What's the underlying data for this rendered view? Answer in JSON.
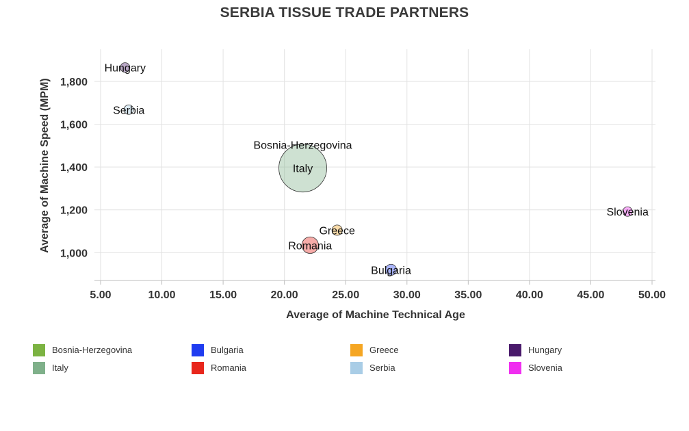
{
  "chart_data": {
    "type": "scatter",
    "title": "SERBIA TISSUE TRADE PARTNERS",
    "xlabel": "Average of Machine Technical Age",
    "ylabel": "Average of Machine Speed (MPM)",
    "xlim": [
      5,
      50
    ],
    "ylim": [
      870,
      1950
    ],
    "xticks": [
      "5.00",
      "10.00",
      "15.00",
      "20.00",
      "25.00",
      "30.00",
      "35.00",
      "40.00",
      "45.00",
      "50.00"
    ],
    "yticks": [
      "1,000",
      "1,200",
      "1,400",
      "1,600",
      "1,800"
    ],
    "grid": true,
    "legend_position": "bottom",
    "series": [
      {
        "name": "Bosnia-Herzegovina",
        "color": "#7cb342",
        "x": 21.5,
        "y": 1505,
        "size": 0
      },
      {
        "name": "Bulgaria",
        "color": "#1f3cf0",
        "x": 28.7,
        "y": 920,
        "size": 80
      },
      {
        "name": "Greece",
        "color": "#f5a623",
        "x": 24.3,
        "y": 1105,
        "size": 70
      },
      {
        "name": "Hungary",
        "color": "#4a1a6b",
        "x": 7.0,
        "y": 1865,
        "size": 60
      },
      {
        "name": "Italy",
        "color": "#7fb08a",
        "x": 21.5,
        "y": 1395,
        "size": 1500
      },
      {
        "name": "Romania",
        "color": "#e8261c",
        "x": 22.1,
        "y": 1035,
        "size": 180
      },
      {
        "name": "Serbia",
        "color": "#a9cde6",
        "x": 7.3,
        "y": 1668,
        "size": 40
      },
      {
        "name": "Slovenia",
        "color": "#f02ef0",
        "x": 48.0,
        "y": 1192,
        "size": 60
      }
    ]
  }
}
